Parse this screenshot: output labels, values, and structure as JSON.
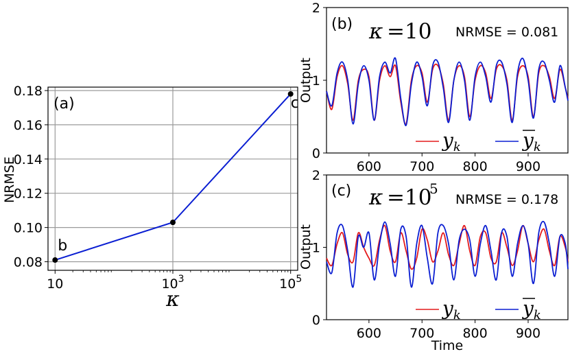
{
  "colors": {
    "red": "#e41a1c",
    "blue": "#0a1ed2",
    "line_a": "#0a1ed2",
    "grid": "#9a9a9a"
  },
  "chart_data": [
    {
      "type": "line",
      "panel_label": "(a)",
      "xlabel": "κ",
      "ylabel": "NRMSE",
      "x_scale": "log",
      "x_ticks": [
        "10",
        "10^3",
        "10^5"
      ],
      "y_ticks": [
        "0.08",
        "0.10",
        "0.12",
        "0.14",
        "0.16",
        "0.18"
      ],
      "ylim": [
        0.075,
        0.182
      ],
      "grid": true,
      "series": [
        {
          "x": [
            10,
            1000,
            100000
          ],
          "y": [
            0.081,
            0.103,
            0.178
          ],
          "point_labels": [
            "b",
            "",
            "c"
          ]
        }
      ]
    },
    {
      "type": "line",
      "panel_label": "(b)",
      "kappa_text": "10",
      "nrmse_text": "NRMSE = 0.081",
      "xlabel": "",
      "ylabel": "Output",
      "xlim": [
        520,
        975
      ],
      "ylim": [
        0,
        2
      ],
      "x_ticks": [
        "600",
        "700",
        "800",
        "900"
      ],
      "y_ticks": [
        "0",
        "1",
        "2"
      ],
      "legend": {
        "red": "y_k",
        "blue": "ȳ_k"
      },
      "series": [
        {
          "name": "y_k",
          "x": [
            520,
            530,
            540,
            550,
            560,
            570,
            580,
            590,
            600,
            610,
            620,
            630,
            640,
            650,
            660,
            670,
            680,
            690,
            700,
            710,
            720,
            730,
            740,
            750,
            760,
            770,
            780,
            790,
            800,
            810,
            820,
            830,
            840,
            850,
            860,
            870,
            880,
            890,
            900,
            910,
            920,
            930,
            940,
            950,
            960,
            970,
            975
          ],
          "y": [
            0.85,
            0.6,
            1.05,
            1.2,
            0.95,
            0.45,
            1.0,
            1.15,
            1.05,
            0.45,
            1.0,
            1.2,
            1.05,
            1.2,
            0.7,
            0.4,
            1.0,
            1.2,
            1.1,
            0.7,
            1.15,
            1.2,
            0.95,
            0.45,
            1.0,
            1.2,
            1.05,
            0.5,
            1.0,
            1.2,
            1.1,
            0.75,
            1.15,
            1.2,
            1.0,
            0.45,
            1.05,
            1.2,
            1.05,
            0.5,
            1.1,
            1.2,
            1.05,
            0.75,
            1.15,
            0.9,
            0.75
          ]
        },
        {
          "name": "ȳ_k",
          "x": [
            520,
            530,
            540,
            550,
            560,
            570,
            580,
            590,
            600,
            610,
            620,
            630,
            640,
            650,
            660,
            670,
            680,
            690,
            700,
            710,
            720,
            730,
            740,
            750,
            760,
            770,
            780,
            790,
            800,
            810,
            820,
            830,
            840,
            850,
            860,
            870,
            880,
            890,
            900,
            910,
            920,
            930,
            940,
            950,
            960,
            970,
            975
          ],
          "y": [
            0.85,
            0.65,
            1.1,
            1.25,
            1.0,
            0.4,
            0.95,
            1.2,
            1.0,
            0.45,
            1.05,
            1.25,
            1.1,
            1.3,
            0.75,
            0.38,
            0.95,
            1.25,
            1.05,
            0.65,
            1.2,
            1.25,
            0.9,
            0.42,
            1.0,
            1.25,
            1.0,
            0.45,
            1.05,
            1.25,
            1.05,
            0.7,
            1.2,
            1.25,
            0.95,
            0.42,
            1.1,
            1.3,
            1.0,
            0.48,
            1.15,
            1.25,
            1.0,
            0.7,
            1.2,
            0.9,
            0.72
          ]
        }
      ]
    },
    {
      "type": "line",
      "panel_label": "(c)",
      "kappa_text": "10",
      "kappa_exp": "5",
      "nrmse_text": "NRMSE = 0.178",
      "xlabel": "Time",
      "ylabel": "Output",
      "xlim": [
        520,
        975
      ],
      "ylim": [
        0,
        2
      ],
      "x_ticks": [
        "600",
        "700",
        "800",
        "900"
      ],
      "y_ticks": [
        "0",
        "1",
        "2"
      ],
      "legend": {
        "red": "y_k",
        "blue": "ȳ_k"
      },
      "series": [
        {
          "name": "y_k",
          "x": [
            520,
            530,
            540,
            550,
            560,
            570,
            580,
            590,
            600,
            610,
            620,
            630,
            640,
            650,
            660,
            670,
            680,
            690,
            700,
            710,
            720,
            730,
            740,
            750,
            760,
            770,
            780,
            790,
            800,
            810,
            820,
            830,
            840,
            850,
            860,
            870,
            880,
            890,
            900,
            910,
            920,
            930,
            940,
            950,
            960,
            970,
            975
          ],
          "y": [
            0.85,
            0.75,
            1.05,
            1.2,
            0.9,
            0.8,
            1.2,
            1.0,
            0.85,
            0.75,
            1.1,
            1.3,
            0.95,
            0.8,
            1.2,
            0.95,
            0.7,
            0.85,
            1.25,
            1.1,
            0.8,
            0.95,
            1.2,
            0.9,
            0.75,
            1.05,
            1.3,
            0.95,
            0.75,
            1.15,
            1.2,
            0.85,
            0.8,
            1.2,
            1.0,
            0.75,
            0.95,
            1.3,
            1.05,
            0.8,
            1.1,
            1.25,
            0.95,
            0.75,
            1.15,
            1.0,
            0.8
          ]
        },
        {
          "name": "ȳ_k",
          "x": [
            520,
            530,
            540,
            550,
            560,
            570,
            580,
            590,
            600,
            610,
            620,
            630,
            640,
            650,
            660,
            670,
            680,
            690,
            700,
            710,
            720,
            730,
            740,
            750,
            760,
            770,
            780,
            790,
            800,
            810,
            820,
            830,
            840,
            850,
            860,
            870,
            880,
            890,
            900,
            910,
            920,
            930,
            940,
            950,
            960,
            970,
            975
          ],
          "y": [
            0.8,
            0.65,
            1.2,
            1.3,
            0.95,
            0.45,
            1.15,
            1.0,
            1.2,
            0.55,
            1.05,
            1.35,
            1.05,
            0.6,
            1.25,
            1.15,
            0.45,
            1.05,
            1.3,
            0.85,
            0.5,
            1.2,
            1.3,
            1.05,
            0.55,
            1.1,
            1.25,
            1.1,
            0.6,
            1.05,
            1.3,
            0.95,
            0.55,
            1.2,
            1.15,
            0.6,
            1.05,
            1.3,
            1.05,
            0.5,
            1.2,
            1.35,
            1.05,
            0.6,
            1.15,
            1.05,
            0.7
          ]
        }
      ]
    }
  ]
}
